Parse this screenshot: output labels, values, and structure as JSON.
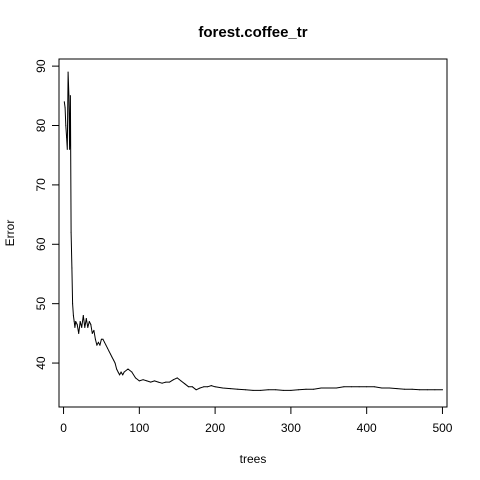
{
  "chart_data": {
    "type": "line",
    "title": "forest.coffee_tr",
    "xlabel": "trees",
    "ylabel": "Error",
    "xlim": [
      -6,
      506
    ],
    "ylim": [
      32.6,
      91.2
    ],
    "x_ticks": [
      0,
      100,
      200,
      300,
      400,
      500
    ],
    "y_ticks": [
      40,
      50,
      60,
      70,
      80,
      90
    ],
    "grid": false,
    "legend": "none",
    "line_color": "#000000",
    "series": [
      {
        "x": [
          1,
          2,
          3,
          4,
          5,
          6,
          7,
          8,
          9,
          10,
          11,
          12,
          13,
          14,
          15,
          16,
          18,
          20,
          22,
          24,
          26,
          28,
          30,
          32,
          34,
          36,
          38,
          40,
          42,
          44,
          46,
          48,
          50,
          52,
          54,
          56,
          58,
          60,
          62,
          64,
          66,
          68,
          70,
          72,
          74,
          76,
          78,
          80,
          85,
          90,
          95,
          100,
          105,
          110,
          115,
          120,
          125,
          130,
          135,
          140,
          145,
          150,
          155,
          160,
          165,
          170,
          175,
          180,
          185,
          190,
          195,
          200,
          210,
          220,
          230,
          240,
          250,
          260,
          270,
          280,
          290,
          300,
          310,
          320,
          330,
          340,
          350,
          360,
          370,
          380,
          390,
          400,
          410,
          420,
          430,
          440,
          450,
          460,
          470,
          480,
          490,
          500
        ],
        "y": [
          84,
          83,
          80,
          78,
          76,
          89,
          85,
          76,
          85,
          62,
          56,
          50,
          48,
          47,
          46,
          47,
          46.5,
          45,
          47,
          46,
          48,
          46,
          47.5,
          46,
          47,
          46.5,
          45,
          45.5,
          44,
          43,
          43.5,
          43,
          44,
          44,
          43.5,
          43,
          42.5,
          42,
          41.5,
          41,
          40.5,
          40,
          39,
          38.5,
          38,
          38.5,
          38,
          38.5,
          39,
          38.5,
          37.5,
          37,
          37.2,
          37,
          36.8,
          37,
          36.8,
          36.6,
          36.8,
          36.8,
          37.2,
          37.5,
          37,
          36.5,
          36,
          36,
          35.5,
          35.8,
          36,
          36,
          36.2,
          36,
          35.8,
          35.7,
          35.6,
          35.5,
          35.4,
          35.4,
          35.5,
          35.5,
          35.4,
          35.4,
          35.5,
          35.6,
          35.6,
          35.8,
          35.8,
          35.8,
          36,
          36,
          36,
          36,
          36,
          35.8,
          35.8,
          35.7,
          35.6,
          35.6,
          35.5,
          35.5,
          35.5,
          35.5
        ]
      }
    ]
  }
}
